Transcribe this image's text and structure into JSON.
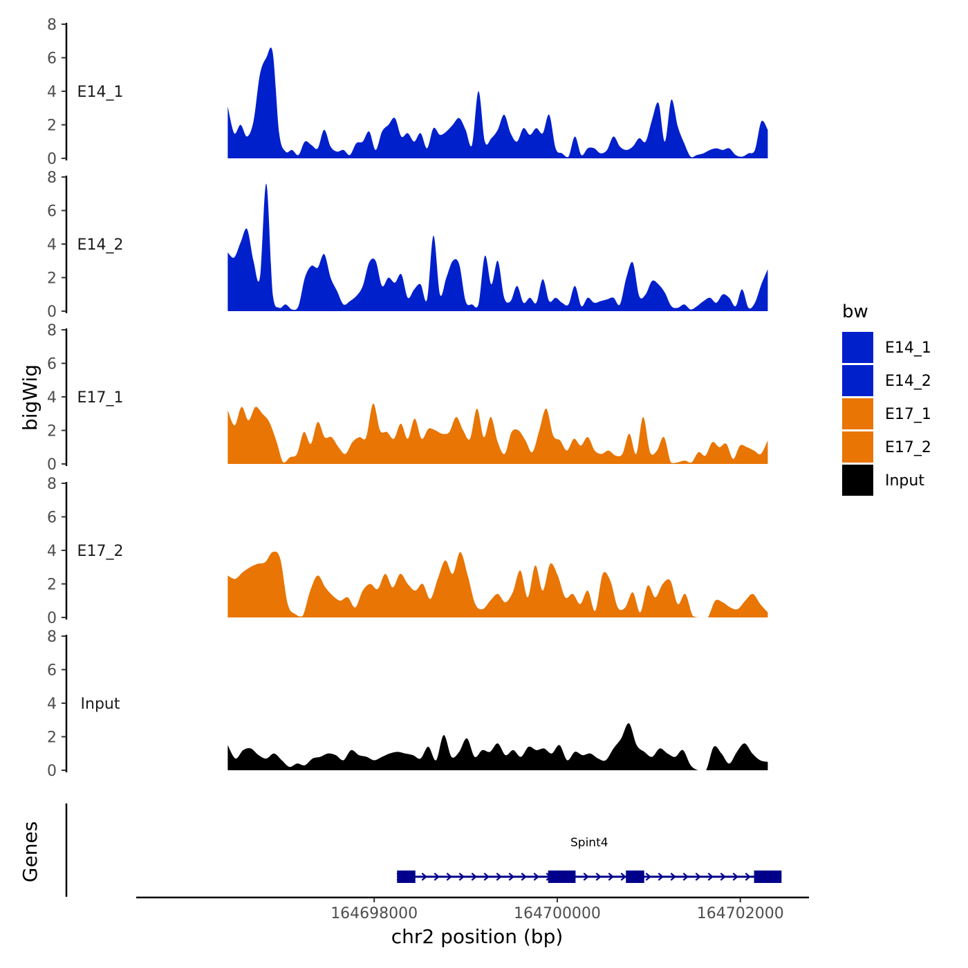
{
  "chart_data": {
    "type": "area",
    "title": "",
    "ylabel": "bigWig",
    "genes_label": "Genes",
    "xlabel": "chr2 position (bp)",
    "xlim": [
      164695400,
      164702750
    ],
    "ylim": [
      0,
      8
    ],
    "yticks": [
      "0",
      "2",
      "4",
      "6",
      "8"
    ],
    "xticks": [
      {
        "value": 164698000,
        "label": "164698000"
      },
      {
        "value": 164700000,
        "label": "164700000"
      },
      {
        "value": 164702000,
        "label": "164702000"
      }
    ],
    "legend": {
      "title": "bw",
      "position": "right",
      "items": [
        {
          "name": "E14_1",
          "color": "#0020CC"
        },
        {
          "name": "E14_2",
          "color": "#0020CC"
        },
        {
          "name": "E17_1",
          "color": "#E87504"
        },
        {
          "name": "E17_2",
          "color": "#E87504"
        },
        {
          "name": "Input",
          "color": "#000000"
        }
      ]
    },
    "track_x_range": [
      164696400,
      164702300
    ],
    "tracks": [
      {
        "name": "E14_1",
        "color": "#0020CC",
        "values": [
          3.1,
          1.5,
          2.0,
          1.3,
          2.2,
          5.0,
          6.0,
          6.3,
          1.5,
          0.4,
          0.5,
          0.2,
          1.0,
          0.8,
          0.6,
          1.7,
          0.7,
          0.4,
          0.5,
          0.2,
          0.9,
          1.0,
          1.6,
          0.5,
          1.6,
          2.0,
          2.4,
          1.3,
          1.5,
          1.0,
          1.5,
          0.6,
          1.8,
          1.4,
          1.6,
          2.0,
          2.4,
          1.7,
          0.8,
          4.0,
          1.0,
          1.2,
          1.7,
          2.6,
          1.5,
          1.0,
          1.8,
          1.4,
          1.8,
          1.5,
          2.6,
          0.6,
          0.3,
          0.1,
          1.3,
          0.2,
          0.6,
          0.6,
          0.3,
          0.5,
          1.3,
          0.7,
          0.5,
          0.7,
          1.2,
          1.0,
          2.3,
          3.3,
          1.0,
          3.5,
          1.9,
          0.9,
          0.1,
          0.2,
          0.3,
          0.5,
          0.6,
          0.5,
          0.6,
          0.2,
          0.1,
          0.3,
          0.5,
          2.2,
          1.7
        ]
      },
      {
        "name": "E14_2",
        "color": "#0020CC",
        "values": [
          3.5,
          3.2,
          4.1,
          4.9,
          3.0,
          2.0,
          7.6,
          1.0,
          0.2,
          0.4,
          0.1,
          0.3,
          2.0,
          2.7,
          2.6,
          3.4,
          2.0,
          1.2,
          0.4,
          0.6,
          0.9,
          1.5,
          2.9,
          3.0,
          1.5,
          2.0,
          1.7,
          2.2,
          0.8,
          1.3,
          1.6,
          0.7,
          4.5,
          1.0,
          2.0,
          3.0,
          2.8,
          0.6,
          0.4,
          0.4,
          3.3,
          1.6,
          3.0,
          0.8,
          0.6,
          1.5,
          0.5,
          0.8,
          0.5,
          1.9,
          0.6,
          0.8,
          0.5,
          0.4,
          1.5,
          0.3,
          0.8,
          0.5,
          0.6,
          0.7,
          0.8,
          0.4,
          2.0,
          2.9,
          0.9,
          1.0,
          1.8,
          1.6,
          1.1,
          0.3,
          0.2,
          0.4,
          0.1,
          0.3,
          0.6,
          0.8,
          0.5,
          1.0,
          0.8,
          0.3,
          1.3,
          0.2,
          0.5,
          1.6,
          2.5
        ]
      },
      {
        "name": "E17_1",
        "color": "#E87504",
        "values": [
          3.2,
          2.3,
          3.4,
          2.6,
          3.4,
          3.0,
          2.5,
          1.4,
          0.1,
          0.4,
          0.6,
          1.9,
          1.2,
          2.5,
          1.6,
          1.6,
          1.0,
          0.6,
          1.3,
          1.6,
          1.6,
          3.6,
          2.0,
          1.9,
          1.5,
          2.4,
          1.5,
          2.7,
          1.5,
          2.1,
          2.0,
          1.8,
          1.9,
          2.8,
          2.0,
          1.5,
          3.3,
          1.6,
          2.8,
          1.3,
          0.6,
          1.9,
          2.0,
          1.4,
          0.7,
          2.0,
          3.3,
          1.7,
          1.4,
          0.8,
          1.5,
          1.1,
          1.6,
          0.8,
          0.6,
          0.8,
          0.5,
          0.6,
          1.8,
          0.6,
          2.8,
          0.7,
          0.8,
          1.6,
          0.1,
          0.1,
          0.2,
          0.1,
          0.7,
          0.5,
          1.3,
          1.0,
          1.2,
          0.3,
          1.1,
          1.0,
          0.8,
          0.6,
          1.4
        ]
      },
      {
        "name": "E17_2",
        "color": "#E87504",
        "values": [
          2.5,
          2.3,
          2.7,
          3.0,
          3.2,
          3.3,
          3.9,
          3.5,
          0.8,
          0.2,
          0.1,
          1.6,
          2.5,
          1.8,
          1.3,
          1.0,
          1.2,
          0.6,
          1.6,
          2.0,
          1.7,
          2.6,
          1.8,
          2.6,
          2.0,
          1.6,
          2.0,
          1.1,
          2.3,
          3.4,
          2.6,
          3.9,
          2.5,
          0.8,
          0.5,
          1.0,
          1.4,
          0.9,
          1.5,
          2.8,
          1.2,
          3.1,
          1.6,
          3.2,
          2.5,
          1.2,
          1.4,
          0.8,
          1.6,
          0.4,
          2.6,
          2.2,
          0.6,
          0.6,
          1.5,
          0.3,
          1.9,
          1.2,
          2.0,
          2.2,
          0.8,
          1.4,
          0.1,
          0.0,
          0.0,
          1.0,
          0.9,
          0.6,
          0.5,
          1.0,
          1.4,
          0.8,
          0.3
        ]
      },
      {
        "name": "Input",
        "color": "#000000",
        "values": [
          1.5,
          0.7,
          1.2,
          1.3,
          0.9,
          0.7,
          1.0,
          0.6,
          0.2,
          0.4,
          0.3,
          0.7,
          0.8,
          1.0,
          0.9,
          0.6,
          1.2,
          0.9,
          0.8,
          0.6,
          0.8,
          1.0,
          1.1,
          1.0,
          0.9,
          0.7,
          1.4,
          0.6,
          2.1,
          0.8,
          1.1,
          1.9,
          0.8,
          1.2,
          1.1,
          1.6,
          0.9,
          1.2,
          0.8,
          1.4,
          1.2,
          1.3,
          1.0,
          1.5,
          0.6,
          1.1,
          0.9,
          1.0,
          0.7,
          0.6,
          1.3,
          1.9,
          2.8,
          1.5,
          1.1,
          0.8,
          1.3,
          1.0,
          0.8,
          1.2,
          0.3,
          0.0,
          0.0,
          1.4,
          1.0,
          0.4,
          1.1,
          1.6,
          1.0,
          0.6,
          0.5
        ]
      }
    ],
    "genes": [
      {
        "name": "Spint4",
        "start": 164698250,
        "end": 164702450,
        "strand": "+",
        "color": "#00008B",
        "exons": [
          [
            164698250,
            164698450
          ],
          [
            164699900,
            164700200
          ],
          [
            164700750,
            164700950
          ],
          [
            164702150,
            164702450
          ]
        ]
      }
    ]
  }
}
